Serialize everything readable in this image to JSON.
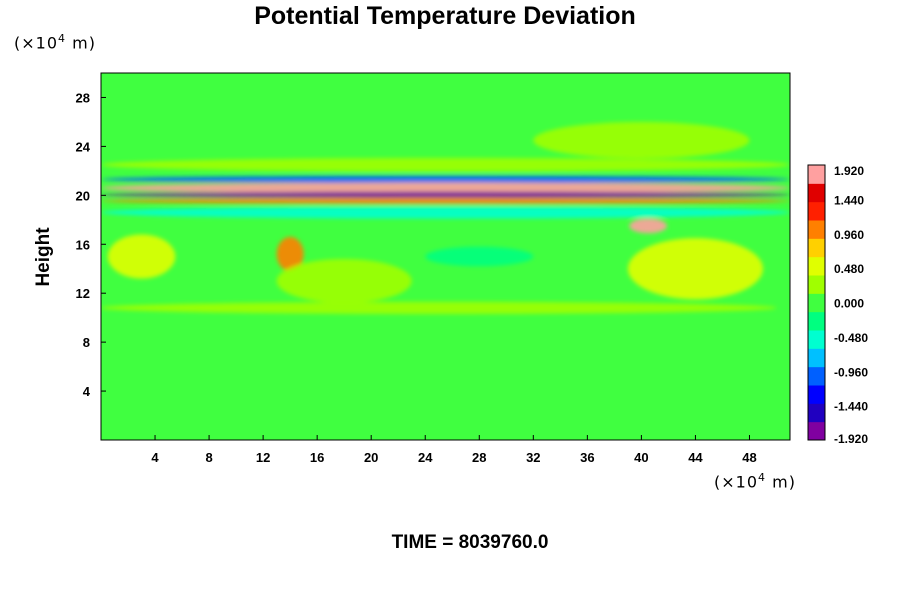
{
  "chart_data": {
    "type": "heatmap",
    "title": "Potential Temperature Deviation",
    "ylabel": "Height",
    "xlabel": "",
    "x_unit": {
      "prefix": "(×10",
      "exp": "4",
      "suffix": " m)"
    },
    "y_unit": {
      "prefix": "(×10",
      "exp": "4",
      "suffix": " m)"
    },
    "xlim": [
      0,
      51
    ],
    "ylim": [
      0,
      30
    ],
    "xticks": [
      4,
      8,
      12,
      16,
      20,
      24,
      28,
      32,
      36,
      40,
      44,
      48
    ],
    "yticks": [
      4,
      8,
      12,
      16,
      20,
      24,
      28
    ],
    "colorbar": {
      "range": [
        -1.92,
        1.92
      ],
      "tick_values": [
        1.92,
        1.44,
        0.96,
        0.48,
        0.0,
        -0.48,
        -0.96,
        -1.44,
        -1.92
      ],
      "tick_labels": [
        "1.920",
        "1.440",
        "0.960",
        "0.480",
        "0.000",
        "-0.480",
        "-0.960",
        "-1.440",
        "-1.920"
      ],
      "colors": [
        "#8000a0",
        "#2000c0",
        "#0000ff",
        "#0060ff",
        "#00c0ff",
        "#00ffd0",
        "#00ff80",
        "#40ff40",
        "#a0ff00",
        "#e0ff00",
        "#ffd000",
        "#ff8000",
        "#ff2000",
        "#e00000",
        "#ffa0a0"
      ]
    },
    "features": [
      {
        "x": 25.5,
        "y": 21.3,
        "value": -1.0,
        "rx": 25.5,
        "ry": 0.3
      },
      {
        "x": 25.5,
        "y": 20.6,
        "value": 1.9,
        "rx": 25.5,
        "ry": 0.45
      },
      {
        "x": 25.5,
        "y": 20.05,
        "value": -1.7,
        "rx": 25.5,
        "ry": 0.25
      },
      {
        "x": 25.5,
        "y": 19.55,
        "value": 0.9,
        "rx": 25.5,
        "ry": 0.25
      },
      {
        "x": 25.5,
        "y": 22.5,
        "value": 0.35,
        "rx": 25.5,
        "ry": 0.55
      },
      {
        "x": 25.5,
        "y": 18.6,
        "value": -0.4,
        "rx": 25.5,
        "ry": 0.5
      },
      {
        "x": 40.5,
        "y": 17.5,
        "value": 1.8,
        "rx": 1.4,
        "ry": 0.6
      },
      {
        "x": 14.0,
        "y": 15.2,
        "value": 0.9,
        "rx": 1.0,
        "ry": 1.4
      },
      {
        "x": 3.0,
        "y": 15.0,
        "value": 0.45,
        "rx": 2.5,
        "ry": 1.8
      },
      {
        "x": 44.0,
        "y": 14.0,
        "value": 0.4,
        "rx": 5.0,
        "ry": 2.5
      },
      {
        "x": 18.0,
        "y": 13.0,
        "value": 0.3,
        "rx": 5.0,
        "ry": 1.8
      },
      {
        "x": 25.0,
        "y": 10.8,
        "value": 0.2,
        "rx": 25.0,
        "ry": 0.5
      },
      {
        "x": 28.0,
        "y": 15.0,
        "value": -0.35,
        "rx": 4.0,
        "ry": 0.8
      },
      {
        "x": 40.0,
        "y": 24.5,
        "value": 0.25,
        "rx": 8.0,
        "ry": 1.5
      }
    ]
  },
  "footer": {
    "label": "TIME",
    "equals": " = ",
    "value": "8039760.0"
  }
}
